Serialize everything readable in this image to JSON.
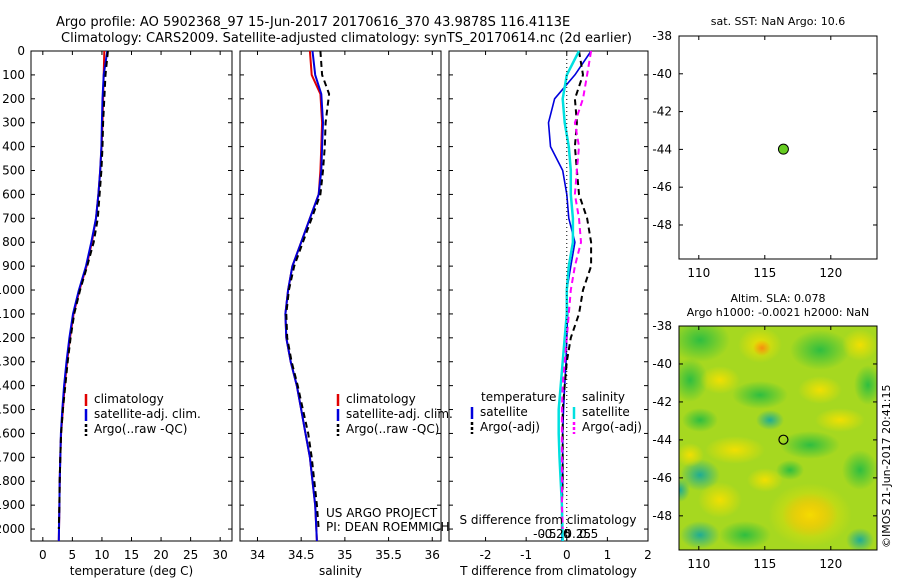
{
  "header": {
    "line1": "Argo profile: AO 5902368_97 15-Jun-2017 20170616_370 43.9878S 116.4113E",
    "line2": "Climatology: CARS2009. Satellite-adjusted climatology: synTS_20170614.nc (2d earlier)"
  },
  "colors": {
    "climatology": "#e00000",
    "satellite": "#0000dd",
    "argo": "#000000",
    "salinity_satellite": "#00e0e0",
    "salinity_argo": "#ff00ff",
    "marker": "#66cc22"
  },
  "depth_axis": {
    "ticks": [
      "0",
      "100",
      "200",
      "300",
      "400",
      "500",
      "600",
      "700",
      "800",
      "900",
      "1000",
      "1100",
      "1200",
      "1300",
      "1400",
      "1500",
      "1600",
      "1700",
      "1800",
      "1900",
      "2000"
    ]
  },
  "chart_data": [
    {
      "id": "temperature",
      "type": "line",
      "xlabel": "temperature (deg C)",
      "ylabel": "depth",
      "xlim": [
        -2,
        32
      ],
      "ylim": [
        2050,
        0
      ],
      "xticks": [
        "0",
        "5",
        "10",
        "15",
        "20",
        "25",
        "30"
      ],
      "legend": [
        "climatology",
        "satellite-adj. clim.",
        "Argo(..raw -QC)"
      ],
      "series": [
        {
          "name": "climatology",
          "x": [
            10.4,
            10.3,
            10.2,
            10.1,
            9.95,
            9.7,
            9.4,
            9.0,
            8.3,
            7.4,
            6.2,
            5.2,
            4.6,
            4.1,
            3.7,
            3.4,
            3.1,
            2.95,
            2.85,
            2.8,
            2.7
          ],
          "depth": [
            0,
            100,
            200,
            300,
            400,
            500,
            600,
            700,
            800,
            900,
            1000,
            1100,
            1200,
            1300,
            1400,
            1500,
            1600,
            1700,
            1800,
            1900,
            2050
          ]
        },
        {
          "name": "satellite-adj. clim.",
          "x": [
            10.9,
            10.3,
            10.1,
            10.0,
            9.9,
            9.7,
            9.4,
            9.0,
            8.2,
            7.3,
            6.1,
            5.1,
            4.5,
            4.0,
            3.6,
            3.3,
            3.05,
            2.95,
            2.85,
            2.8,
            2.7
          ],
          "depth": [
            0,
            100,
            200,
            300,
            400,
            500,
            600,
            700,
            800,
            900,
            1000,
            1100,
            1200,
            1300,
            1400,
            1500,
            1600,
            1700,
            1800,
            1900,
            2050
          ]
        },
        {
          "name": "Argo(..raw -QC)",
          "x": [
            11.0,
            10.6,
            10.4,
            10.2,
            10.1,
            9.9,
            9.6,
            9.3,
            8.6,
            7.5,
            6.3,
            5.3,
            4.7,
            4.2,
            3.8,
            3.4,
            3.1,
            2.95,
            2.85,
            2.8,
            2.7
          ],
          "depth": [
            0,
            100,
            200,
            300,
            400,
            500,
            600,
            700,
            800,
            900,
            1000,
            1100,
            1200,
            1300,
            1400,
            1500,
            1600,
            1700,
            1800,
            1900,
            2000
          ]
        }
      ]
    },
    {
      "id": "salinity",
      "type": "line",
      "xlabel": "salinity",
      "ylabel": "depth",
      "xlim": [
        33.8,
        36.1
      ],
      "ylim": [
        2050,
        0
      ],
      "xticks": [
        "34",
        "34.5",
        "35",
        "35.5",
        "36"
      ],
      "legend": [
        "climatology",
        "satellite-adj. clim.",
        "Argo(..raw -QC)"
      ],
      "annotation": [
        "US ARGO PROJECT",
        "PI: DEAN ROEMMICH"
      ],
      "series": [
        {
          "name": "climatology",
          "x": [
            34.6,
            34.62,
            34.72,
            34.74,
            34.73,
            34.72,
            34.7,
            34.6,
            34.5,
            34.4,
            34.35,
            34.32,
            34.33,
            34.38,
            34.45,
            34.5,
            34.55,
            34.6,
            34.63,
            34.66,
            34.68
          ],
          "depth": [
            0,
            100,
            180,
            300,
            400,
            500,
            600,
            700,
            800,
            900,
            1000,
            1100,
            1200,
            1300,
            1400,
            1500,
            1600,
            1700,
            1800,
            1900,
            2050
          ]
        },
        {
          "name": "satellite-adj. clim.",
          "x": [
            34.63,
            34.66,
            34.73,
            34.75,
            34.74,
            34.73,
            34.7,
            34.6,
            34.5,
            34.4,
            34.35,
            34.32,
            34.33,
            34.38,
            34.45,
            34.5,
            34.55,
            34.6,
            34.63,
            34.66,
            34.68
          ],
          "depth": [
            0,
            100,
            180,
            300,
            400,
            500,
            600,
            700,
            800,
            900,
            1000,
            1100,
            1200,
            1300,
            1400,
            1500,
            1600,
            1700,
            1800,
            1900,
            2050
          ]
        },
        {
          "name": "Argo(..raw -QC)",
          "x": [
            34.72,
            34.74,
            34.82,
            34.78,
            34.77,
            34.75,
            34.72,
            34.62,
            34.52,
            34.42,
            34.36,
            34.33,
            34.34,
            34.39,
            34.46,
            34.52,
            34.58,
            34.62,
            34.65,
            34.68,
            34.7
          ],
          "depth": [
            0,
            100,
            180,
            300,
            400,
            500,
            600,
            700,
            800,
            900,
            1000,
            1100,
            1200,
            1300,
            1400,
            1500,
            1600,
            1700,
            1800,
            1900,
            2000
          ]
        }
      ]
    },
    {
      "id": "difference",
      "type": "line",
      "xlabel": "T difference from climatology",
      "ylabel": "depth",
      "xlim": [
        -2.9,
        2.0
      ],
      "ylim": [
        2050,
        0
      ],
      "xticks": [
        "-2",
        "-1",
        "0",
        "1",
        "2"
      ],
      "top_xlabel": "S difference from climatology",
      "top_xticks": [
        "-0.5",
        "-0.25",
        "0",
        "0.25",
        "0.5"
      ],
      "top_xtick_values": [
        -0.5,
        -0.25,
        0,
        0.25,
        0.5
      ],
      "legend": {
        "temperature_title": "temperature",
        "salinity_title": "salinity",
        "satellite": "satellite",
        "argo": "Argo(-adj)"
      },
      "series": [
        {
          "name": "temperature satellite",
          "x": [
            0.6,
            0.2,
            -0.3,
            -0.45,
            -0.4,
            -0.1,
            0.0,
            0.05,
            0.2,
            0.1,
            0.0,
            0.02,
            0.0,
            -0.02,
            -0.05,
            -0.08,
            -0.1,
            -0.1,
            -0.1,
            -0.12,
            -0.12
          ],
          "depth": [
            0,
            100,
            200,
            300,
            400,
            500,
            600,
            700,
            800,
            900,
            1000,
            1100,
            1200,
            1300,
            1400,
            1500,
            1600,
            1700,
            1800,
            1900,
            2050
          ]
        },
        {
          "name": "temperature Argo(-adj)",
          "x": [
            0.3,
            0.4,
            0.2,
            0.25,
            0.2,
            0.25,
            0.3,
            0.5,
            0.6,
            0.6,
            0.4,
            0.3,
            0.1,
            0.0,
            -0.05,
            -0.1,
            -0.1,
            -0.1,
            -0.1,
            -0.12,
            -0.12
          ],
          "depth": [
            0,
            100,
            200,
            300,
            400,
            500,
            600,
            700,
            800,
            900,
            1000,
            1100,
            1200,
            1300,
            1400,
            1500,
            1600,
            1700,
            1800,
            1900,
            2000
          ]
        },
        {
          "name": "salinity satellite",
          "x": [
            0.3,
            0.0,
            -0.1,
            -0.05,
            0.05,
            0.1,
            0.1,
            0.15,
            0.15,
            0.05,
            0.0,
            0.0,
            -0.05,
            -0.1,
            -0.15,
            -0.2,
            -0.2,
            -0.18,
            -0.15,
            -0.12,
            -0.1
          ],
          "depth": [
            0,
            100,
            200,
            300,
            400,
            500,
            600,
            700,
            800,
            900,
            1000,
            1100,
            1200,
            1300,
            1400,
            1500,
            1600,
            1700,
            1800,
            1900,
            2050
          ]
        },
        {
          "name": "salinity Argo(-adj)",
          "x": [
            0.6,
            0.5,
            0.4,
            0.2,
            0.3,
            0.25,
            0.2,
            0.3,
            0.35,
            0.2,
            0.1,
            0.05,
            0.0,
            -0.05,
            -0.1,
            -0.12,
            -0.12,
            -0.12,
            -0.12,
            -0.12,
            -0.1
          ],
          "depth": [
            0,
            100,
            200,
            300,
            400,
            500,
            600,
            700,
            800,
            900,
            1000,
            1100,
            1200,
            1300,
            1400,
            1500,
            1600,
            1700,
            1800,
            1900,
            2000
          ]
        }
      ]
    },
    {
      "id": "sst_map",
      "type": "scatter",
      "title": "sat. SST: NaN Argo: 10.6",
      "xlim": [
        108.5,
        123.5
      ],
      "ylim": [
        -49.8,
        -38
      ],
      "xticks": [
        "110",
        "115",
        "120"
      ],
      "yticks": [
        "-38",
        "-40",
        "-42",
        "-44",
        "-46",
        "-48"
      ],
      "points": [
        {
          "lon": 116.4113,
          "lat": -43.9878
        }
      ]
    },
    {
      "id": "sla_map",
      "type": "heatmap",
      "title_line1": "Altim. SLA: 0.078",
      "title_line2": "Argo h1000: -0.0021 h2000: NaN",
      "xlim": [
        108.5,
        123.5
      ],
      "ylim": [
        -49.8,
        -38
      ],
      "xticks": [
        "110",
        "115",
        "120"
      ],
      "yticks": [
        "-38",
        "-40",
        "-42",
        "-44",
        "-46",
        "-48"
      ],
      "points": [
        {
          "lon": 116.4113,
          "lat": -43.9878
        }
      ]
    }
  ],
  "footer": {
    "stamp": "©IMOS 21-Jun-2017 20:41:15"
  }
}
